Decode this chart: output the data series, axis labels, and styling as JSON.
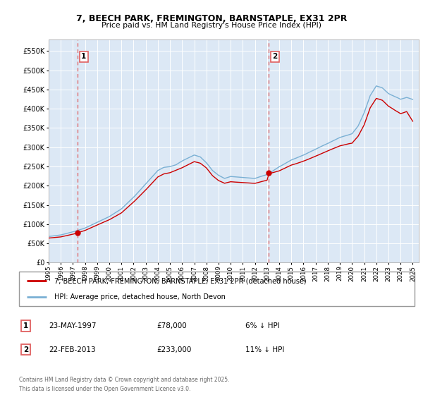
{
  "title": "7, BEECH PARK, FREMINGTON, BARNSTAPLE, EX31 2PR",
  "subtitle": "Price paid vs. HM Land Registry's House Price Index (HPI)",
  "ylim": [
    0,
    580000
  ],
  "yticks": [
    0,
    50000,
    100000,
    150000,
    200000,
    250000,
    300000,
    350000,
    400000,
    450000,
    500000,
    550000
  ],
  "xlim_start": 1995.0,
  "xlim_end": 2025.5,
  "bg_color": "#ffffff",
  "plot_bg_color": "#dce8f5",
  "grid_color": "#c8d8e8",
  "legend_label_red": "7, BEECH PARK, FREMINGTON, BARNSTAPLE, EX31 2PR (detached house)",
  "legend_label_blue": "HPI: Average price, detached house, North Devon",
  "sale1_date": "23-MAY-1997",
  "sale1_price": 78000,
  "sale1_note": "6% ↓ HPI",
  "sale1_x": 1997.38,
  "sale2_date": "22-FEB-2013",
  "sale2_price": 233000,
  "sale2_note": "11% ↓ HPI",
  "sale2_x": 2013.13,
  "footer": "Contains HM Land Registry data © Crown copyright and database right 2025.\nThis data is licensed under the Open Government Licence v3.0.",
  "color_red": "#cc0000",
  "color_blue": "#7ab0d4",
  "color_dashed": "#e06060"
}
